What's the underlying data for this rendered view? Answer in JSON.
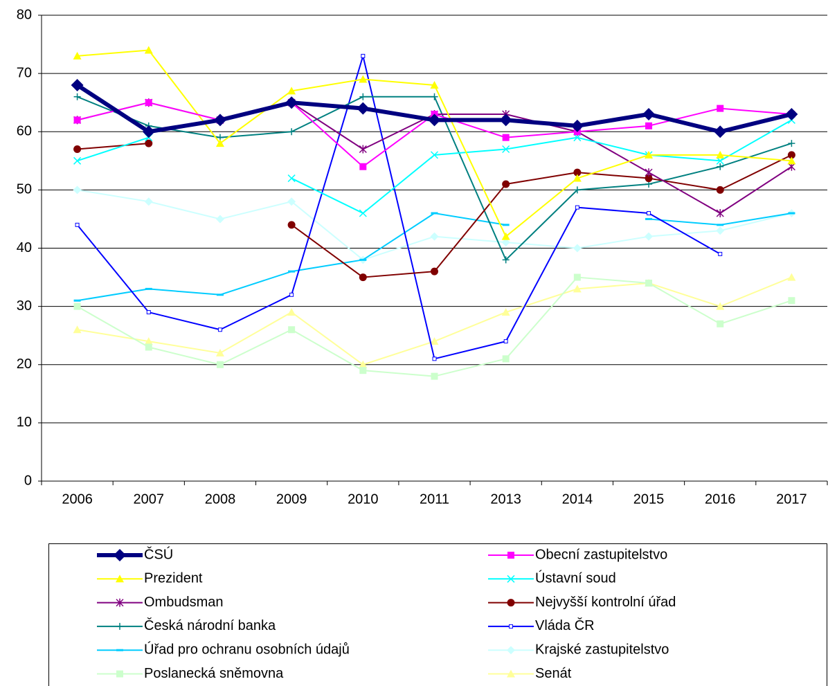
{
  "chart_data": {
    "type": "line",
    "categories": [
      "2006",
      "2007",
      "2008",
      "2009",
      "2010",
      "2011",
      "2013",
      "2014",
      "2015",
      "2016",
      "2017"
    ],
    "ylim": [
      0,
      80
    ],
    "yticks": [
      0,
      10,
      20,
      30,
      40,
      50,
      60,
      70,
      80
    ],
    "grid": true,
    "series": [
      {
        "name": "ČSÚ",
        "color": "#000080",
        "marker": "diamond",
        "width": 6,
        "values": [
          68,
          60,
          62,
          65,
          64,
          62,
          62,
          61,
          63,
          60,
          63
        ]
      },
      {
        "name": "Obecní zastupitelstvo",
        "color": "#ff00ff",
        "marker": "square",
        "width": 2,
        "values": [
          62,
          65,
          62,
          65,
          54,
          63,
          59,
          60,
          61,
          64,
          63
        ]
      },
      {
        "name": "Prezident",
        "color": "#ffff00",
        "marker": "triangle",
        "width": 2,
        "values": [
          73,
          74,
          58,
          67,
          69,
          68,
          42,
          52,
          56,
          56,
          55
        ]
      },
      {
        "name": "Ústavní soud",
        "color": "#00ffff",
        "marker": "x",
        "width": 2,
        "values": [
          55,
          59,
          null,
          52,
          46,
          56,
          57,
          59,
          56,
          55,
          62
        ]
      },
      {
        "name": "Ombudsman",
        "color": "#800080",
        "marker": "star",
        "width": 2,
        "values": [
          62,
          65,
          62,
          65,
          57,
          63,
          63,
          60,
          53,
          46,
          54
        ]
      },
      {
        "name": "Nejvyšší kontrolní úřad",
        "color": "#800000",
        "marker": "circle",
        "width": 2,
        "values": [
          57,
          58,
          null,
          44,
          35,
          36,
          51,
          53,
          52,
          50,
          56
        ]
      },
      {
        "name": "Česká národní banka",
        "color": "#008080",
        "marker": "plus",
        "width": 2,
        "values": [
          66,
          61,
          59,
          60,
          66,
          66,
          38,
          50,
          51,
          54,
          58
        ]
      },
      {
        "name": "Vláda ČR",
        "color": "#0000ff",
        "marker": "small",
        "width": 2,
        "values": [
          44,
          29,
          26,
          32,
          73,
          21,
          24,
          47,
          46,
          39,
          null
        ]
      },
      {
        "name": "Úřad pro ochranu osobních údajů",
        "color": "#00ccff",
        "marker": "dash",
        "width": 2,
        "values": [
          31,
          33,
          32,
          36,
          38,
          46,
          44,
          null,
          45,
          44,
          46
        ]
      },
      {
        "name": "Krajské zastupitelstvo",
        "color": "#ccffff",
        "marker": "diamond",
        "width": 2,
        "values": [
          50,
          48,
          45,
          48,
          38,
          42,
          41,
          40,
          42,
          43,
          46
        ]
      },
      {
        "name": "Poslanecká sněmovna",
        "color": "#ccffcc",
        "marker": "square",
        "width": 2,
        "values": [
          30,
          23,
          20,
          26,
          19,
          18,
          21,
          35,
          34,
          27,
          31
        ]
      },
      {
        "name": "Senát",
        "color": "#ffff99",
        "marker": "triangle",
        "width": 2,
        "values": [
          26,
          24,
          22,
          29,
          20,
          24,
          29,
          33,
          34,
          30,
          35
        ]
      }
    ]
  }
}
